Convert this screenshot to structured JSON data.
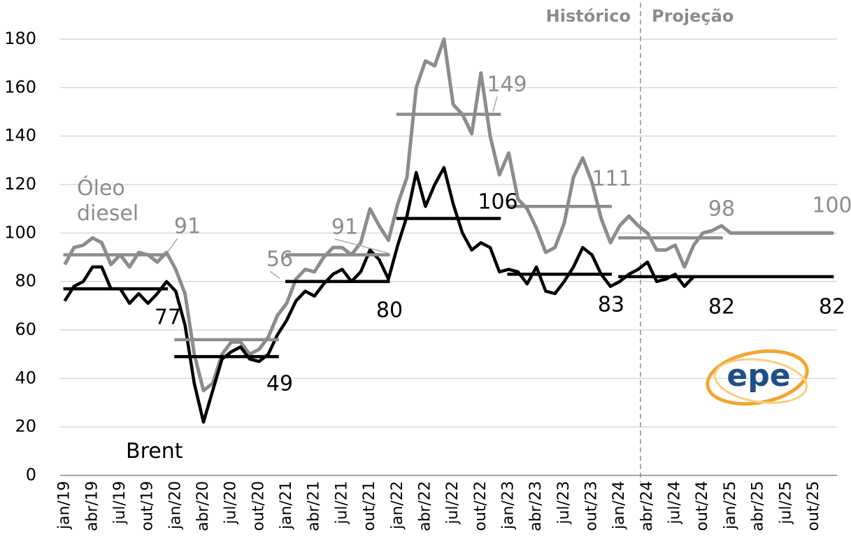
{
  "chart_data": {
    "type": "line",
    "categories": [
      "jan/19",
      null,
      null,
      "abr/19",
      null,
      null,
      "jul/19",
      null,
      null,
      "out/19",
      null,
      null,
      "jan/20",
      null,
      null,
      "abr/20",
      null,
      null,
      "jul/20",
      null,
      null,
      "out/20",
      null,
      null,
      "jan/21",
      null,
      null,
      "abr/21",
      null,
      null,
      "jul/21",
      null,
      null,
      "out/21",
      null,
      null,
      "jan/22",
      null,
      null,
      "abr/22",
      null,
      null,
      "jul/22",
      null,
      null,
      "out/22",
      null,
      null,
      "jan/23",
      null,
      null,
      "abr/23",
      null,
      null,
      "jul/23",
      null,
      null,
      "out/23",
      null,
      null,
      "jan/24",
      null,
      null,
      "abr/24",
      null,
      null,
      "jul/24",
      null,
      null,
      "out/24",
      null,
      null,
      "jan/25",
      null,
      null,
      "abr/25",
      null,
      null,
      "jul/25",
      null,
      null,
      "out/25",
      null,
      null
    ],
    "series": [
      {
        "name": "Óleo diesel",
        "color": "#8c8c8c",
        "values": [
          87,
          94,
          95,
          98,
          96,
          87,
          91,
          86,
          92,
          91,
          88,
          92,
          85,
          75,
          50,
          35,
          38,
          50,
          55,
          55,
          50,
          52,
          57,
          66,
          71,
          81,
          85,
          84,
          90,
          94,
          94,
          91,
          96,
          110,
          103,
          97,
          112,
          123,
          160,
          171,
          169,
          180,
          153,
          149,
          141,
          166,
          140,
          124,
          133,
          114,
          110,
          102,
          92,
          94,
          104,
          123,
          131,
          121,
          106,
          96,
          103,
          107,
          103,
          100,
          93,
          93,
          95,
          86,
          95,
          100,
          101,
          103,
          100,
          100,
          100,
          100,
          100,
          100,
          100,
          100,
          100,
          100,
          100,
          100
        ],
        "averages": [
          91,
          56,
          91,
          149,
          111,
          98,
          100
        ]
      },
      {
        "name": "Brent",
        "color": "#000000",
        "values": [
          72,
          78,
          80,
          86,
          86,
          77,
          77,
          71,
          75,
          71,
          75,
          80,
          76,
          62,
          38,
          22,
          35,
          48,
          51,
          53,
          48,
          47,
          50,
          58,
          64,
          72,
          76,
          74,
          79,
          83,
          85,
          80,
          84,
          93,
          89,
          81,
          95,
          107,
          125,
          111,
          120,
          127,
          112,
          100,
          93,
          96,
          94,
          84,
          85,
          84,
          79,
          86,
          76,
          75,
          80,
          86,
          94,
          91,
          83,
          78,
          80,
          83,
          85,
          88,
          80,
          81,
          83,
          78,
          82,
          82,
          82,
          82,
          82,
          82,
          82,
          82,
          82,
          82,
          82,
          82,
          82,
          82,
          82,
          82
        ],
        "averages": [
          77,
          49,
          80,
          106,
          83,
          82,
          82
        ]
      }
    ],
    "ylim": [
      0,
      180
    ],
    "yticks": [
      0,
      20,
      40,
      60,
      80,
      100,
      120,
      140,
      160,
      180
    ],
    "grid": true,
    "annotations": {
      "historical": "Histórico",
      "projection": "Projeção"
    },
    "logo": "epe"
  }
}
